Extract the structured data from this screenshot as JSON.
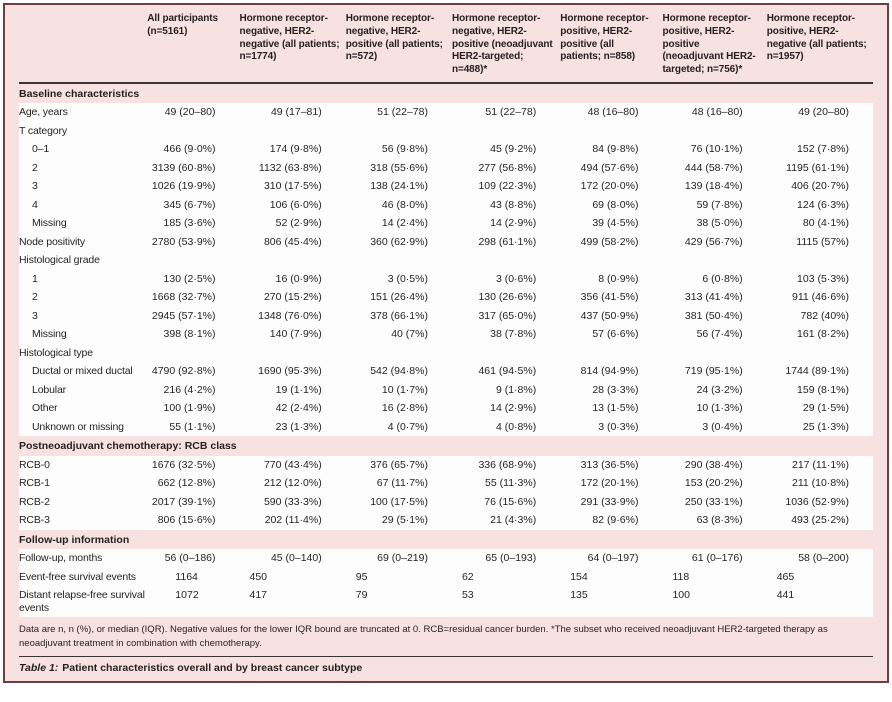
{
  "colors": {
    "background_pink": "#f8e1e1",
    "row_white": "#fefdfd",
    "frame_border": "#6d3e44",
    "rule_dark": "#3c3434",
    "text": "#231f20"
  },
  "table": {
    "columns": [
      "All participants (n=5161)",
      "Hormone receptor-negative, HER2-negative (all patients; n=1774)",
      "Hormone receptor-negative, HER2-positive (all patients; n=572)",
      "Hormone receptor-negative, HER2-positive (neoadjuvant HER2-targeted; n=488)*",
      "Hormone receptor-positive, HER2-positive (all patients; n=858)",
      "Hormone receptor-positive, HER2-positive (neoadjuvant HER2-targeted; n=756)*",
      "Hormone receptor-positive, HER2-negative (all patients; n=1957)"
    ],
    "rows": [
      {
        "kind": "section",
        "label": "Baseline characteristics"
      },
      {
        "kind": "row",
        "label": "Age, years",
        "indent": 0,
        "align": "right",
        "values": [
          "49 (20–80)",
          "49 (17–81)",
          "51 (22–78)",
          "51 (22–78)",
          "48 (16–80)",
          "48 (16–80)",
          "49 (20–80)"
        ]
      },
      {
        "kind": "row",
        "label": "T category",
        "indent": 0,
        "align": "right",
        "values": [
          "",
          "",
          "",
          "",
          "",
          "",
          ""
        ]
      },
      {
        "kind": "row",
        "label": "0–1",
        "indent": 1,
        "align": "right",
        "values": [
          "466 (9·0%)",
          "174 (9·8%)",
          "56 (9·8%)",
          "45 (9·2%)",
          "84 (9·8%)",
          "76 (10·1%)",
          "152 (7·8%)"
        ]
      },
      {
        "kind": "row",
        "label": "2",
        "indent": 1,
        "align": "right",
        "values": [
          "3139 (60·8%)",
          "1132 (63·8%)",
          "318 (55·6%)",
          "277 (56·8%)",
          "494 (57·6%)",
          "444 (58·7%)",
          "1195 (61·1%)"
        ]
      },
      {
        "kind": "row",
        "label": "3",
        "indent": 1,
        "align": "right",
        "values": [
          "1026 (19·9%)",
          "310 (17·5%)",
          "138 (24·1%)",
          "109 (22·3%)",
          "172 (20·0%)",
          "139 (18·4%)",
          "406 (20·7%)"
        ]
      },
      {
        "kind": "row",
        "label": "4",
        "indent": 1,
        "align": "right",
        "values": [
          "345 (6·7%)",
          "106 (6·0%)",
          "46 (8·0%)",
          "43 (8·8%)",
          "69 (8·0%)",
          "59 (7·8%)",
          "124 (6·3%)"
        ]
      },
      {
        "kind": "row",
        "label": "Missing",
        "indent": 1,
        "align": "right",
        "values": [
          "185 (3·6%)",
          "52 (2·9%)",
          "14 (2·4%)",
          "14 (2·9%)",
          "39 (4·5%)",
          "38 (5·0%)",
          "80 (4·1%)"
        ]
      },
      {
        "kind": "row",
        "label": "Node positivity",
        "indent": 0,
        "align": "right",
        "values": [
          "2780 (53·9%)",
          "806 (45·4%)",
          "360 (62·9%)",
          "298 (61·1%)",
          "499 (58·2%)",
          "429 (56·7%)",
          "1115 (57%)"
        ]
      },
      {
        "kind": "row",
        "label": "Histological grade",
        "indent": 0,
        "align": "right",
        "values": [
          "",
          "",
          "",
          "",
          "",
          "",
          ""
        ]
      },
      {
        "kind": "row",
        "label": "1",
        "indent": 1,
        "align": "right",
        "values": [
          "130 (2·5%)",
          "16 (0·9%)",
          "3 (0·5%)",
          "3 (0·6%)",
          "8 (0·9%)",
          "6 (0·8%)",
          "103 (5·3%)"
        ]
      },
      {
        "kind": "row",
        "label": "2",
        "indent": 1,
        "align": "right",
        "values": [
          "1668 (32·7%)",
          "270 (15·2%)",
          "151 (26·4%)",
          "130 (26·6%)",
          "356 (41·5%)",
          "313 (41·4%)",
          "911 (46·6%)"
        ]
      },
      {
        "kind": "row",
        "label": "3",
        "indent": 1,
        "align": "right",
        "values": [
          "2945 (57·1%)",
          "1348 (76·0%)",
          "378 (66·1%)",
          "317 (65·0%)",
          "437 (50·9%)",
          "381 (50·4%)",
          "782 (40%)"
        ]
      },
      {
        "kind": "row",
        "label": "Missing",
        "indent": 1,
        "align": "right",
        "values": [
          "398 (8·1%)",
          "140 (7·9%)",
          "40 (7%)",
          "38 (7·8%)",
          "57 (6·6%)",
          "56 (7·4%)",
          "161 (8·2%)"
        ]
      },
      {
        "kind": "row",
        "label": "Histological type",
        "indent": 0,
        "align": "right",
        "values": [
          "",
          "",
          "",
          "",
          "",
          "",
          ""
        ]
      },
      {
        "kind": "row",
        "label": "Ductal or mixed ductal",
        "indent": 1,
        "align": "right",
        "values": [
          "4790 (92·8%)",
          "1690 (95·3%)",
          "542 (94·8%)",
          "461 (94·5%)",
          "814 (94·9%)",
          "719 (95·1%)",
          "1744 (89·1%)"
        ]
      },
      {
        "kind": "row",
        "label": "Lobular",
        "indent": 1,
        "align": "right",
        "values": [
          "216 (4·2%)",
          "19 (1·1%)",
          "10 (1·7%)",
          "9 (1·8%)",
          "28 (3·3%)",
          "24 (3·2%)",
          "159 (8·1%)"
        ]
      },
      {
        "kind": "row",
        "label": "Other",
        "indent": 1,
        "align": "right",
        "values": [
          "100 (1·9%)",
          "42 (2·4%)",
          "16 (2·8%)",
          "14 (2·9%)",
          "13 (1·5%)",
          "10 (1·3%)",
          "29 (1·5%)"
        ]
      },
      {
        "kind": "row",
        "label": "Unknown or missing",
        "indent": 1,
        "align": "right",
        "values": [
          "55 (1·1%)",
          "23 (1·3%)",
          "4 (0·7%)",
          "4 (0·8%)",
          "3 (0·3%)",
          "3 (0·4%)",
          "25 (1·3%)"
        ]
      },
      {
        "kind": "section",
        "label": "Postneoadjuvant chemotherapy: RCB class"
      },
      {
        "kind": "row",
        "label": "RCB-0",
        "indent": 0,
        "align": "right",
        "values": [
          "1676 (32·5%)",
          "770 (43·4%)",
          "376 (65·7%)",
          "336 (68·9%)",
          "313 (36·5%)",
          "290 (38·4%)",
          "217 (11·1%)"
        ]
      },
      {
        "kind": "row",
        "label": "RCB-1",
        "indent": 0,
        "align": "right",
        "values": [
          "662 (12·8%)",
          "212 (12·0%)",
          "67 (11·7%)",
          "55 (11·3%)",
          "172 (20·1%)",
          "153 (20·2%)",
          "211 (10·8%)"
        ]
      },
      {
        "kind": "row",
        "label": "RCB-2",
        "indent": 0,
        "align": "right",
        "values": [
          "2017 (39·1%)",
          "590 (33·3%)",
          "100 (17·5%)",
          "76 (15·6%)",
          "291 (33·9%)",
          "250 (33·1%)",
          "1036 (52·9%)"
        ]
      },
      {
        "kind": "row",
        "label": "RCB-3",
        "indent": 0,
        "align": "right",
        "values": [
          "806 (15·6%)",
          "202 (11·4%)",
          "29 (5·1%)",
          "21 (4·3%)",
          "82 (9·6%)",
          "63 (8·3%)",
          "493 (25·2%)"
        ]
      },
      {
        "kind": "section",
        "label": "Follow-up information"
      },
      {
        "kind": "row",
        "label": "Follow-up, months",
        "indent": 0,
        "align": "right",
        "values": [
          "56 (0–186)",
          "45 (0–140)",
          "69 (0–219)",
          "65 (0–193)",
          "64 (0–197)",
          "61 (0–176)",
          "58 (0–200)"
        ]
      },
      {
        "kind": "row",
        "label": "Event-free survival events",
        "indent": 0,
        "align": "left",
        "values": [
          "1164",
          "450",
          "95",
          "62",
          "154",
          "118",
          "465"
        ]
      },
      {
        "kind": "row",
        "label": "Distant relapse-free survival events",
        "indent": 0,
        "align": "left",
        "values": [
          "1072",
          "417",
          "79",
          "53",
          "135",
          "100",
          "441"
        ]
      }
    ]
  },
  "footnote": "Data are n, n (%), or median (IQR). Negative values for the lower IQR bound are truncated at 0. RCB=residual cancer burden. *The subset who received neoadjuvant HER2-targeted therapy as neoadjuvant treatment in combination with chemotherapy.",
  "caption": {
    "prefix": "Table 1:",
    "text": "Patient characteristics overall and by breast cancer subtype"
  }
}
